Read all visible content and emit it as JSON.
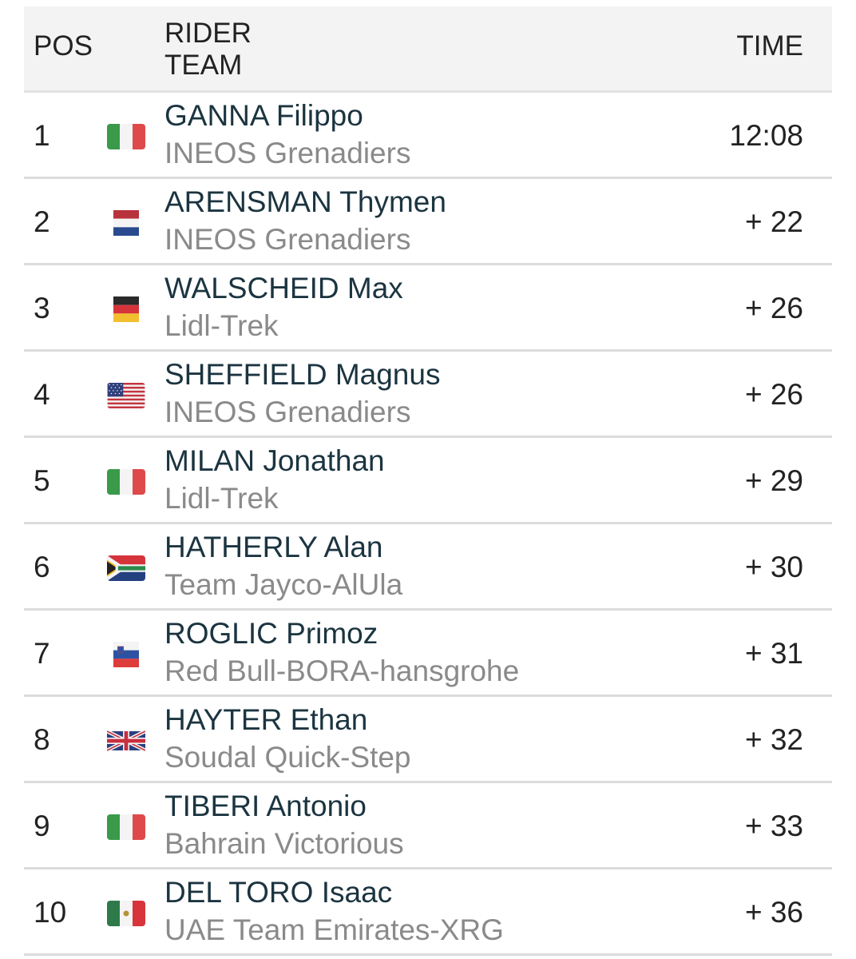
{
  "header": {
    "pos": "POS",
    "rider": "RIDER",
    "team": "TEAM",
    "time": "TIME"
  },
  "rows": [
    {
      "pos": "1",
      "flag": "italy-flag-icon",
      "name": "GANNA Filippo",
      "team": "INEOS Grenadiers",
      "time": "12:08"
    },
    {
      "pos": "2",
      "flag": "netherlands-flag-icon",
      "name": "ARENSMAN Thymen",
      "team": "INEOS Grenadiers",
      "time": "+ 22"
    },
    {
      "pos": "3",
      "flag": "germany-flag-icon",
      "name": "WALSCHEID Max",
      "team": "Lidl-Trek",
      "time": "+ 26"
    },
    {
      "pos": "4",
      "flag": "usa-flag-icon",
      "name": "SHEFFIELD Magnus",
      "team": "INEOS Grenadiers",
      "time": "+ 26"
    },
    {
      "pos": "5",
      "flag": "italy-flag-icon",
      "name": "MILAN Jonathan",
      "team": "Lidl-Trek",
      "time": "+ 29"
    },
    {
      "pos": "6",
      "flag": "south-africa-flag-icon",
      "name": "HATHERLY Alan",
      "team": "Team Jayco-AlUla",
      "time": "+ 30"
    },
    {
      "pos": "7",
      "flag": "slovenia-flag-icon",
      "name": "ROGLIC Primoz",
      "team": "Red Bull-BORA-hansgrohe",
      "time": "+ 31"
    },
    {
      "pos": "8",
      "flag": "uk-flag-icon",
      "name": "HAYTER Ethan",
      "team": "Soudal Quick-Step",
      "time": "+ 32"
    },
    {
      "pos": "9",
      "flag": "italy-flag-icon",
      "name": "TIBERI Antonio",
      "team": "Bahrain Victorious",
      "time": "+ 33"
    },
    {
      "pos": "10",
      "flag": "mexico-flag-icon",
      "name": "DEL TORO Isaac",
      "team": "UAE Team Emirates-XRG",
      "time": "+ 36"
    }
  ],
  "colors": {
    "header_bg": "#f3f3f3",
    "rider_name": "#1b3440",
    "team_name": "#8a8a8a",
    "divider": "#dcdcdc"
  }
}
